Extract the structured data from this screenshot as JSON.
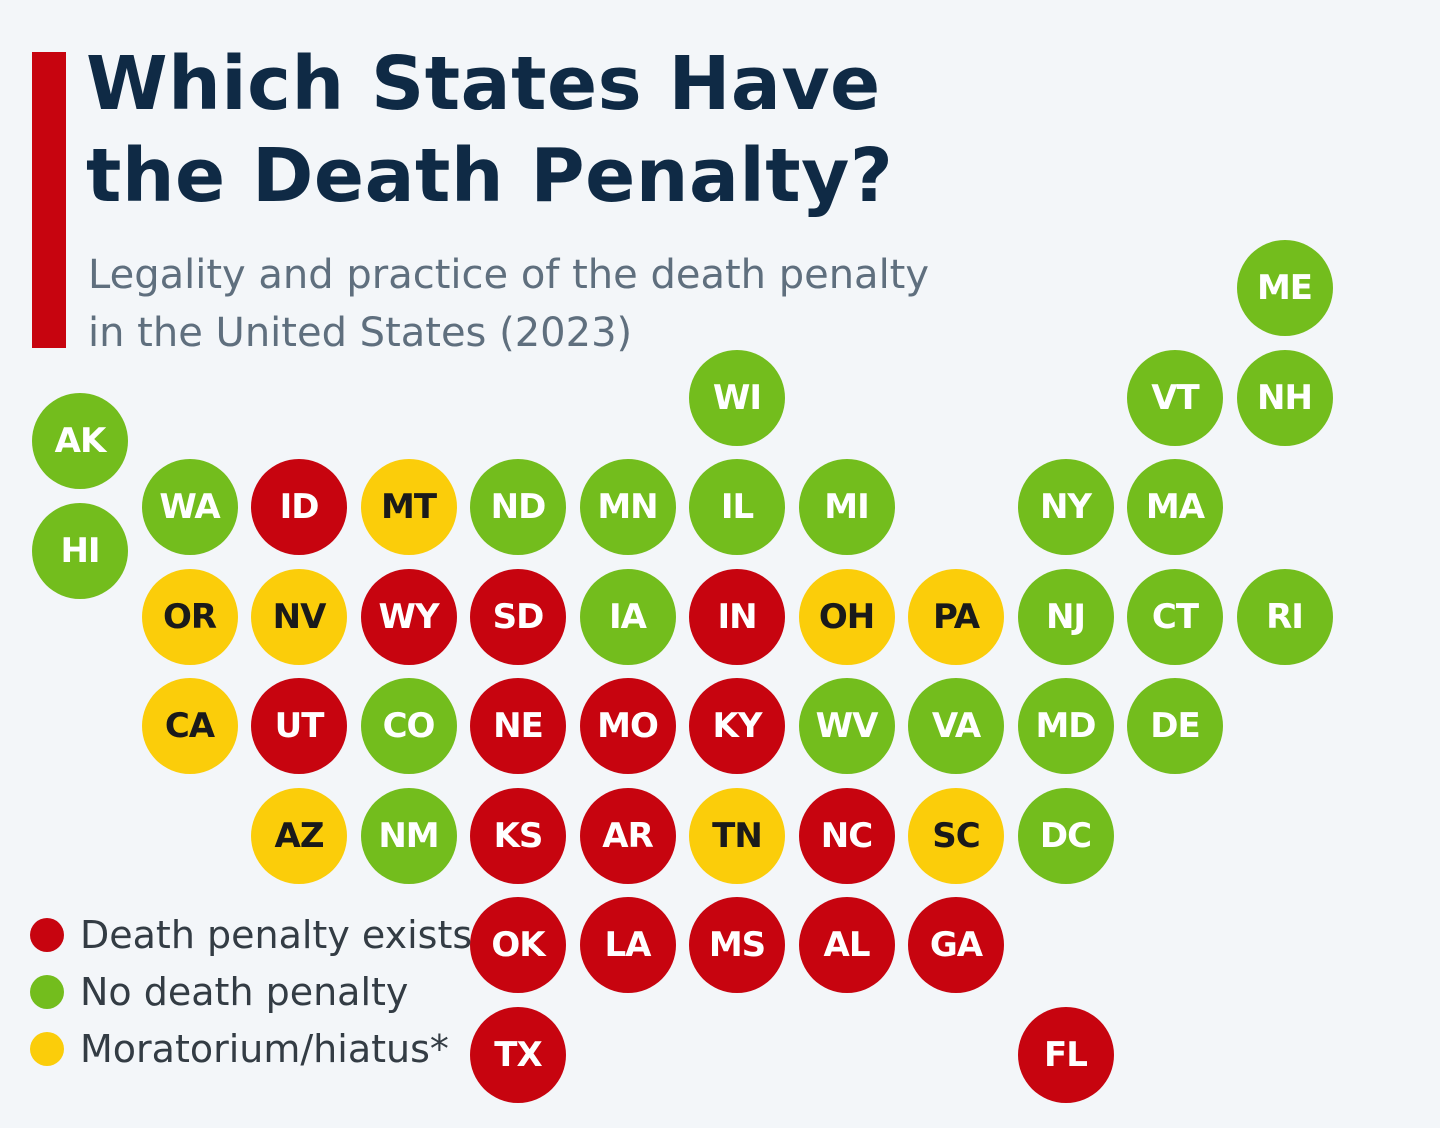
{
  "title": {
    "line1": "Which States Have",
    "line2": "the Death Penalty?"
  },
  "subtitle": {
    "line1": "Legality and practice of the death penalty",
    "line2": "in the United States (2023)"
  },
  "colors": {
    "accent": "#c7040f",
    "exists": "#c7040f",
    "none": "#73bd1d",
    "moratorium": "#fbcd0a",
    "text_on_dark": "#ffffff",
    "text_on_moratorium": "#1a1a1a"
  },
  "legend": [
    {
      "status": "exists",
      "label": "Death penalty exists"
    },
    {
      "status": "none",
      "label": "No death penalty"
    },
    {
      "status": "moratorium",
      "label": "Moratorium/hiatus*"
    }
  ],
  "states": [
    {
      "code": "ME",
      "status": "none",
      "row": 0,
      "col": 11
    },
    {
      "code": "WI",
      "status": "none",
      "row": 1,
      "col": 6
    },
    {
      "code": "VT",
      "status": "none",
      "row": 1,
      "col": 10
    },
    {
      "code": "NH",
      "status": "none",
      "row": 1,
      "col": 11
    },
    {
      "code": "AK",
      "status": "none",
      "row": 1.4,
      "col": 0
    },
    {
      "code": "HI",
      "status": "none",
      "row": 2.4,
      "col": 0
    },
    {
      "code": "WA",
      "status": "none",
      "row": 2,
      "col": 1
    },
    {
      "code": "ID",
      "status": "exists",
      "row": 2,
      "col": 2
    },
    {
      "code": "MT",
      "status": "moratorium",
      "row": 2,
      "col": 3
    },
    {
      "code": "ND",
      "status": "none",
      "row": 2,
      "col": 4
    },
    {
      "code": "MN",
      "status": "none",
      "row": 2,
      "col": 5
    },
    {
      "code": "IL",
      "status": "none",
      "row": 2,
      "col": 6
    },
    {
      "code": "MI",
      "status": "none",
      "row": 2,
      "col": 7
    },
    {
      "code": "NY",
      "status": "none",
      "row": 2,
      "col": 9
    },
    {
      "code": "MA",
      "status": "none",
      "row": 2,
      "col": 10
    },
    {
      "code": "OR",
      "status": "moratorium",
      "row": 3,
      "col": 1
    },
    {
      "code": "NV",
      "status": "moratorium",
      "row": 3,
      "col": 2
    },
    {
      "code": "WY",
      "status": "exists",
      "row": 3,
      "col": 3
    },
    {
      "code": "SD",
      "status": "exists",
      "row": 3,
      "col": 4
    },
    {
      "code": "IA",
      "status": "none",
      "row": 3,
      "col": 5
    },
    {
      "code": "IN",
      "status": "exists",
      "row": 3,
      "col": 6
    },
    {
      "code": "OH",
      "status": "moratorium",
      "row": 3,
      "col": 7
    },
    {
      "code": "PA",
      "status": "moratorium",
      "row": 3,
      "col": 8
    },
    {
      "code": "NJ",
      "status": "none",
      "row": 3,
      "col": 9
    },
    {
      "code": "CT",
      "status": "none",
      "row": 3,
      "col": 10
    },
    {
      "code": "RI",
      "status": "none",
      "row": 3,
      "col": 11
    },
    {
      "code": "CA",
      "status": "moratorium",
      "row": 4,
      "col": 1
    },
    {
      "code": "UT",
      "status": "exists",
      "row": 4,
      "col": 2
    },
    {
      "code": "CO",
      "status": "none",
      "row": 4,
      "col": 3
    },
    {
      "code": "NE",
      "status": "exists",
      "row": 4,
      "col": 4
    },
    {
      "code": "MO",
      "status": "exists",
      "row": 4,
      "col": 5
    },
    {
      "code": "KY",
      "status": "exists",
      "row": 4,
      "col": 6
    },
    {
      "code": "WV",
      "status": "none",
      "row": 4,
      "col": 7
    },
    {
      "code": "VA",
      "status": "none",
      "row": 4,
      "col": 8
    },
    {
      "code": "MD",
      "status": "none",
      "row": 4,
      "col": 9
    },
    {
      "code": "DE",
      "status": "none",
      "row": 4,
      "col": 10
    },
    {
      "code": "AZ",
      "status": "moratorium",
      "row": 5,
      "col": 2
    },
    {
      "code": "NM",
      "status": "none",
      "row": 5,
      "col": 3
    },
    {
      "code": "KS",
      "status": "exists",
      "row": 5,
      "col": 4
    },
    {
      "code": "AR",
      "status": "exists",
      "row": 5,
      "col": 5
    },
    {
      "code": "TN",
      "status": "moratorium",
      "row": 5,
      "col": 6
    },
    {
      "code": "NC",
      "status": "exists",
      "row": 5,
      "col": 7
    },
    {
      "code": "SC",
      "status": "moratorium",
      "row": 5,
      "col": 8
    },
    {
      "code": "DC",
      "status": "none",
      "row": 5,
      "col": 9
    },
    {
      "code": "OK",
      "status": "exists",
      "row": 6,
      "col": 4
    },
    {
      "code": "LA",
      "status": "exists",
      "row": 6,
      "col": 5
    },
    {
      "code": "MS",
      "status": "exists",
      "row": 6,
      "col": 6
    },
    {
      "code": "AL",
      "status": "exists",
      "row": 6,
      "col": 7
    },
    {
      "code": "GA",
      "status": "exists",
      "row": 6,
      "col": 8
    },
    {
      "code": "TX",
      "status": "exists",
      "row": 7,
      "col": 4
    },
    {
      "code": "FL",
      "status": "exists",
      "row": 7,
      "col": 9
    }
  ]
}
